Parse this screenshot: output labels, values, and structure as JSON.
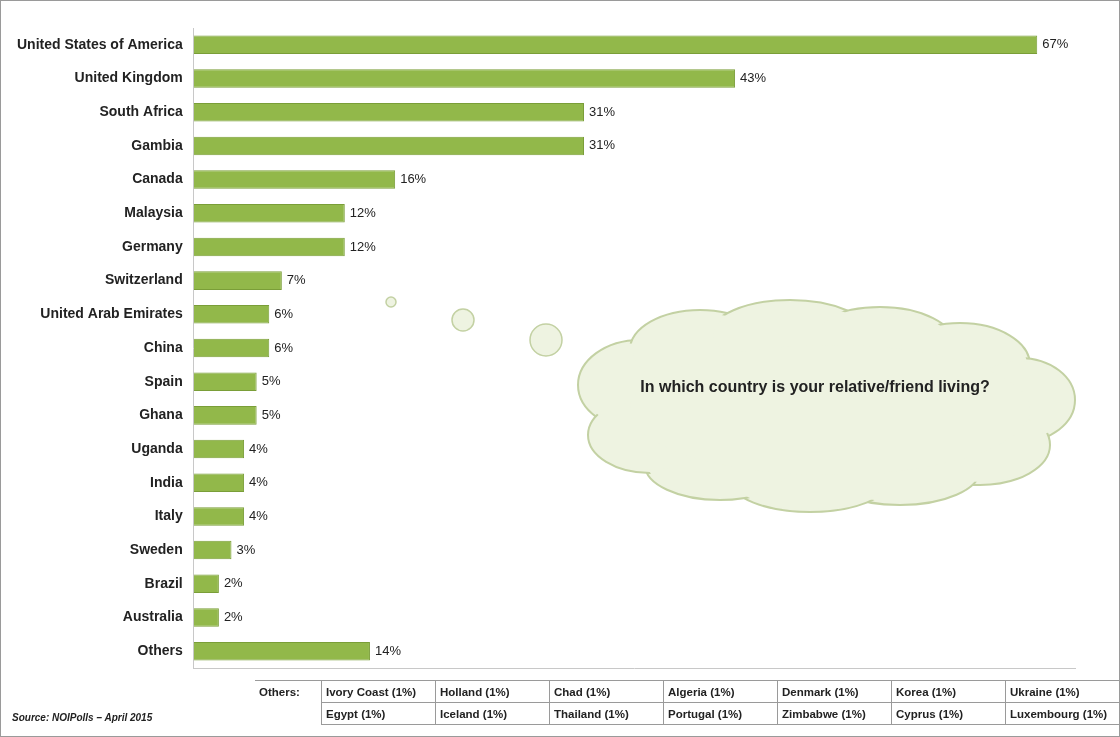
{
  "chart_data": {
    "type": "bar",
    "orientation": "horizontal",
    "categories": [
      "United States of America",
      "United Kingdom",
      "South Africa",
      "Gambia",
      "Canada",
      "Malaysia",
      "Germany",
      "Switzerland",
      "United Arab Emirates",
      "China",
      "Spain",
      "Ghana",
      "Uganda",
      "India",
      "Italy",
      "Sweden",
      "Brazil",
      "Australia",
      "Others"
    ],
    "values": [
      67,
      43,
      31,
      31,
      16,
      12,
      12,
      7,
      6,
      6,
      5,
      5,
      4,
      4,
      4,
      3,
      2,
      2,
      14
    ],
    "value_labels": [
      "67%",
      "43%",
      "31%",
      "31%",
      "16%",
      "12%",
      "12%",
      "7%",
      "6%",
      "6%",
      "5%",
      "5%",
      "4%",
      "4%",
      "4%",
      "3%",
      "2%",
      "2%",
      "14%"
    ],
    "color": "#92b84a",
    "xlim": [
      0,
      70
    ],
    "data_labels": true,
    "tick_labels": "y",
    "grid": false,
    "annotations": [
      "In which country is your relative/friend living?"
    ],
    "source": "Source: NOIPolls – April 2015"
  },
  "table": {
    "label": "Others:",
    "rows": [
      [
        "Ivory Coast (1%)",
        "Holland (1%)",
        "Chad (1%)",
        "Algeria (1%)",
        "Denmark (1%)",
        "Korea (1%)",
        "Ukraine (1%)"
      ],
      [
        "Egypt (1%)",
        "Iceland (1%)",
        "Thailand (1%)",
        "Portugal (1%)",
        "Zimbabwe (1%)",
        "Cyprus (1%)",
        "Luxembourg (1%)"
      ]
    ]
  }
}
